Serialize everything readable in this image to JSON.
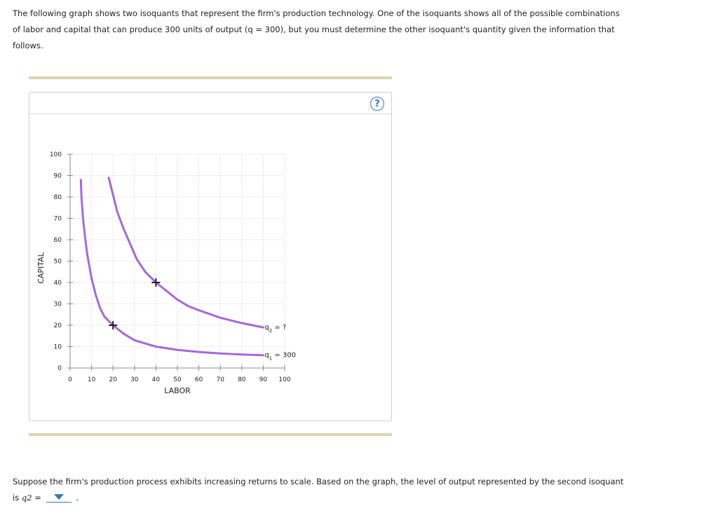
{
  "intro": {
    "line1": "The following graph shows two isoquants that represent the firm's production technology. One of the isoquants shows all of the possible combinations",
    "line2": "of labor and capital that can produce 300 units of output (q = 300), but you must determine the other isoquant's quantity given the information that",
    "line3": "follows."
  },
  "help_label": "?",
  "question": {
    "text": "Suppose the firm's production process exhibits increasing returns to scale. Based on the graph, the level of output represented by the second isoquant",
    "is_label": "is",
    "var_label": "q2",
    "equals": "=",
    "selected_value": "",
    "end": "."
  },
  "chart_data": {
    "type": "line",
    "xlabel": "LABOR",
    "ylabel": "CAPITAL",
    "xlim": [
      0,
      100
    ],
    "ylim": [
      0,
      100
    ],
    "x_ticks": [
      "0",
      "10",
      "20",
      "30",
      "40",
      "50",
      "60",
      "70",
      "80",
      "90",
      "100"
    ],
    "y_ticks": [
      "0",
      "10",
      "20",
      "30",
      "40",
      "50",
      "60",
      "70",
      "80",
      "90",
      "100"
    ],
    "grid": true,
    "line_color": "#a569d6",
    "series": [
      {
        "name": "q1 = 300",
        "label_sub": "1",
        "label_rest": " = 300",
        "x": [
          5,
          5.3,
          6,
          7,
          8,
          10,
          12,
          14,
          16,
          18,
          20,
          25,
          30,
          40,
          50,
          60,
          70,
          80,
          90
        ],
        "y": [
          88,
          80,
          70,
          61,
          53,
          42,
          34,
          28,
          24,
          22,
          20,
          16,
          13,
          10,
          8.5,
          7.5,
          6.8,
          6.3,
          6
        ]
      },
      {
        "name": "q2 = ?",
        "label_sub": "2",
        "label_rest": " = ?",
        "x": [
          18,
          20,
          22,
          25,
          28,
          31,
          35,
          40,
          45,
          50,
          55,
          60,
          70,
          80,
          90
        ],
        "y": [
          89,
          81,
          73,
          65,
          58,
          51,
          45,
          40,
          36,
          32,
          29,
          27,
          23.5,
          21,
          19
        ]
      }
    ],
    "markers": [
      {
        "x": 20,
        "y": 20,
        "symbol": "+"
      },
      {
        "x": 40,
        "y": 40,
        "symbol": "+"
      }
    ]
  }
}
